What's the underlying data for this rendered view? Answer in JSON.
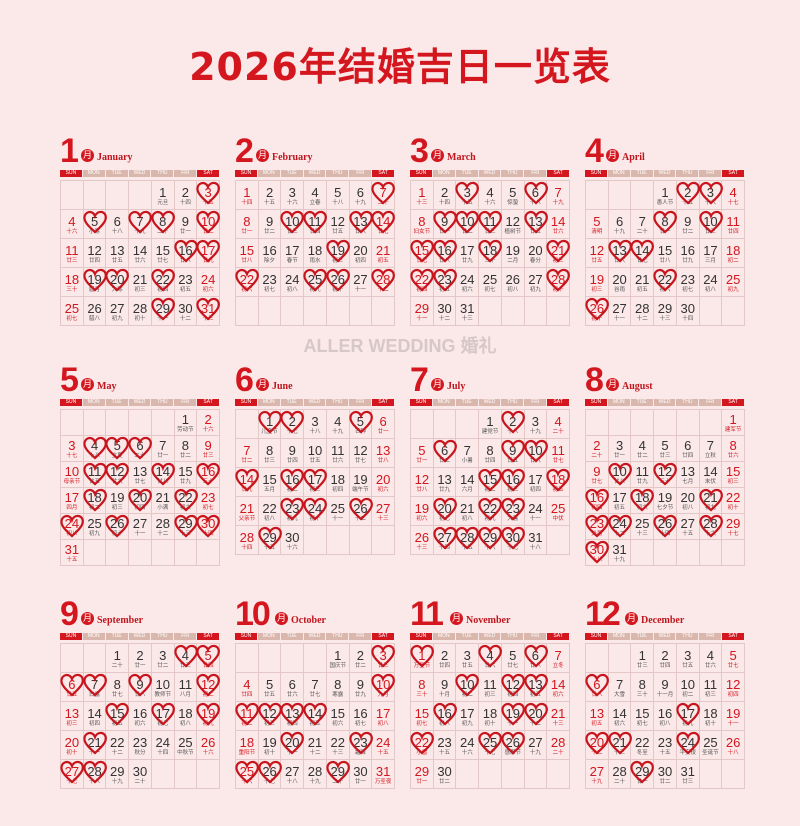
{
  "title": "2026年结婚吉日一览表",
  "watermark": "ALLER WEDDING 婚礼",
  "month_char": "月",
  "weekdays": [
    "SUN",
    "MON",
    "TUE",
    "WED",
    "THU",
    "FRI",
    "SAT"
  ],
  "colors": {
    "accent": "#d4161e",
    "background": "#fbe8e8",
    "weekday_bar": "#d9b7ad",
    "heart": "#c8141c"
  },
  "legend_icon": "heart-icon",
  "months": [
    {
      "num": "1",
      "name": "January",
      "first_weekday": 4,
      "lunar": [
        "元旦",
        "十四",
        "十五",
        "十六",
        "小寒",
        "十八",
        "十九",
        "二十",
        "廿一",
        "廿二",
        "廿三",
        "廿四",
        "廿五",
        "廿六",
        "廿七",
        "廿八",
        "廿九",
        "三十",
        "腊月",
        "大寒",
        "初三",
        "初四",
        "初五",
        "初六",
        "初七",
        "腊八",
        "初九",
        "初十",
        "十一",
        "十二",
        "十三"
      ],
      "hearts": [
        3,
        5,
        7,
        8,
        10,
        16,
        17,
        19,
        20,
        22,
        29,
        31
      ]
    },
    {
      "num": "2",
      "name": "February",
      "first_weekday": 0,
      "lunar": [
        "十四",
        "十五",
        "十六",
        "立春",
        "十八",
        "十九",
        "二十",
        "廿一",
        "廿二",
        "廿三",
        "廿四",
        "廿五",
        "廿六",
        "廿七",
        "廿八",
        "除夕",
        "春节",
        "雨水",
        "初三",
        "初四",
        "初五",
        "初六",
        "初七",
        "初八",
        "初九",
        "初十",
        "十一",
        "十二"
      ],
      "hearts": [
        7,
        10,
        11,
        13,
        14,
        19,
        22,
        25,
        26,
        28
      ]
    },
    {
      "num": "3",
      "name": "March",
      "first_weekday": 0,
      "lunar": [
        "十三",
        "十四",
        "十五",
        "十六",
        "惊蛰",
        "十八",
        "十九",
        "妇女节",
        "廿一",
        "廿二",
        "廿三",
        "植树节",
        "廿五",
        "廿六",
        "廿七",
        "廿八",
        "廿九",
        "三十",
        "二月",
        "春分",
        "初三",
        "初四",
        "初五",
        "初六",
        "初七",
        "初八",
        "初九",
        "初十",
        "十一",
        "十二",
        "十三"
      ],
      "hearts": [
        3,
        6,
        9,
        10,
        11,
        13,
        15,
        16,
        18,
        21,
        22,
        23,
        28
      ]
    },
    {
      "num": "4",
      "name": "April",
      "first_weekday": 3,
      "lunar": [
        "愚人节",
        "十五",
        "十六",
        "十七",
        "清明",
        "十九",
        "二十",
        "廿一",
        "廿二",
        "廿三",
        "廿四",
        "廿五",
        "廿六",
        "廿七",
        "廿八",
        "廿九",
        "三月",
        "初二",
        "初三",
        "谷雨",
        "初五",
        "初六",
        "初七",
        "初八",
        "初九",
        "初十",
        "十一",
        "十二",
        "十三",
        "十四"
      ],
      "hearts": [
        2,
        3,
        8,
        10,
        13,
        14,
        22,
        26
      ]
    },
    {
      "num": "5",
      "name": "May",
      "first_weekday": 5,
      "lunar": [
        "劳动节",
        "十六",
        "十七",
        "十八",
        "立夏",
        "二十",
        "廿一",
        "廿二",
        "廿三",
        "母亲节",
        "廿五",
        "廿六",
        "廿七",
        "廿八",
        "廿九",
        "三十",
        "四月",
        "初二",
        "初三",
        "初四",
        "小满",
        "初六",
        "初七",
        "初八",
        "初九",
        "初十",
        "十一",
        "十二",
        "十三",
        "十四",
        "十五"
      ],
      "hearts": [
        4,
        5,
        6,
        11,
        12,
        14,
        16,
        18,
        20,
        22,
        24,
        26,
        29,
        30
      ]
    },
    {
      "num": "6",
      "name": "June",
      "first_weekday": 1,
      "lunar": [
        "儿童节",
        "十七",
        "十八",
        "十九",
        "芒种",
        "廿一",
        "廿二",
        "廿三",
        "廿四",
        "廿五",
        "廿六",
        "廿七",
        "廿八",
        "廿九",
        "五月",
        "初二",
        "初三",
        "初四",
        "端午节",
        "初六",
        "父亲节",
        "初八",
        "初九",
        "初十",
        "十一",
        "十二",
        "十三",
        "十四",
        "十五",
        "十六"
      ],
      "hearts": [
        1,
        2,
        5,
        14,
        16,
        17,
        23,
        24,
        26,
        29
      ]
    },
    {
      "num": "7",
      "name": "July",
      "first_weekday": 3,
      "lunar": [
        "建党节",
        "十八",
        "十九",
        "二十",
        "廿一",
        "廿二",
        "小暑",
        "廿四",
        "廿五",
        "廿六",
        "廿七",
        "廿八",
        "廿九",
        "六月",
        "初二",
        "初三",
        "初四",
        "初五",
        "初六",
        "初七",
        "初八",
        "初九",
        "大暑",
        "十一",
        "中伏",
        "十三",
        "十四",
        "十五",
        "十六",
        "十七",
        "十八"
      ],
      "hearts": [
        2,
        6,
        9,
        10,
        15,
        16,
        18,
        20,
        22,
        23,
        27,
        28,
        29,
        30
      ]
    },
    {
      "num": "8",
      "name": "August",
      "first_weekday": 6,
      "lunar": [
        "建军节",
        "二十",
        "廿一",
        "廿二",
        "廿三",
        "廿四",
        "立秋",
        "廿六",
        "廿七",
        "廿八",
        "廿九",
        "三十",
        "七月",
        "末伏",
        "初三",
        "初四",
        "初五",
        "初六",
        "七夕节",
        "初八",
        "初九",
        "初十",
        "处暑",
        "十二",
        "十三",
        "十四",
        "十五",
        "十六",
        "十七",
        "十八",
        "十九"
      ],
      "hearts": [
        10,
        12,
        16,
        18,
        21,
        23,
        24,
        26,
        28,
        30
      ]
    },
    {
      "num": "9",
      "name": "September",
      "first_weekday": 2,
      "lunar": [
        "二十",
        "廿一",
        "廿二",
        "廿三",
        "廿四",
        "廿五",
        "白露",
        "廿七",
        "廿八",
        "教师节",
        "八月",
        "初二",
        "初三",
        "初四",
        "初五",
        "初六",
        "初七",
        "初八",
        "初九",
        "初十",
        "十一",
        "十二",
        "秋分",
        "十四",
        "中秋节",
        "十六",
        "十七",
        "十八",
        "十九",
        "二十"
      ],
      "hearts": [
        4,
        5,
        6,
        7,
        9,
        12,
        15,
        17,
        19,
        21,
        27,
        28
      ]
    },
    {
      "num": "10",
      "name": "October",
      "first_weekday": 4,
      "lunar": [
        "国庆节",
        "廿二",
        "廿三",
        "廿四",
        "廿五",
        "廿六",
        "廿七",
        "寒露",
        "廿九",
        "九月",
        "初二",
        "初三",
        "初四",
        "初五",
        "初六",
        "初七",
        "初八",
        "重阳节",
        "初十",
        "十一",
        "十二",
        "十三",
        "霜降",
        "十五",
        "十六",
        "十七",
        "十八",
        "十九",
        "二十",
        "廿一",
        "万圣夜"
      ],
      "hearts": [
        3,
        10,
        11,
        12,
        13,
        14,
        20,
        23,
        25,
        26,
        29
      ]
    },
    {
      "num": "11",
      "name": "November",
      "first_weekday": 0,
      "lunar": [
        "万圣节",
        "廿四",
        "廿五",
        "廿六",
        "廿七",
        "廿八",
        "立冬",
        "三十",
        "十月",
        "初二",
        "初三",
        "初四",
        "初五",
        "初六",
        "初七",
        "初八",
        "初九",
        "初十",
        "十一",
        "十二",
        "十三",
        "小雪",
        "十五",
        "十六",
        "十七",
        "感恩节",
        "十九",
        "二十",
        "廿一",
        "廿二"
      ],
      "hearts": [
        1,
        4,
        6,
        10,
        12,
        13,
        16,
        19,
        20,
        22,
        25,
        26
      ]
    },
    {
      "num": "12",
      "name": "December",
      "first_weekday": 2,
      "lunar": [
        "廿三",
        "廿四",
        "廿五",
        "廿六",
        "廿七",
        "廿八",
        "大雪",
        "三十",
        "十一月",
        "初二",
        "初三",
        "初四",
        "初五",
        "初六",
        "初七",
        "初八",
        "初九",
        "初十",
        "十一",
        "十二",
        "十三",
        "冬至",
        "十五",
        "平安夜",
        "圣诞节",
        "十八",
        "十九",
        "二十",
        "廿一",
        "廿二",
        "廿三"
      ],
      "hearts": [
        6,
        17,
        20,
        21,
        24,
        29
      ]
    }
  ]
}
